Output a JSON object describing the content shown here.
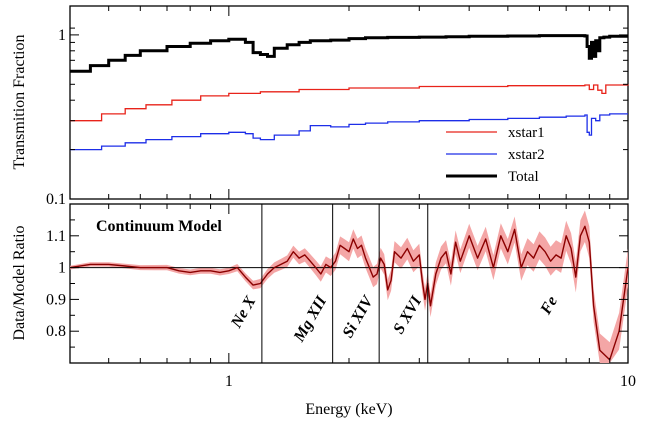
{
  "chart_data": [
    {
      "panel": "top",
      "type": "line",
      "xscale": "log",
      "yscale": "log",
      "xlim": [
        0.4,
        10
      ],
      "ylim": [
        0.1,
        1.5
      ],
      "ylabel": "Transmition Fraction",
      "yticks": [
        {
          "value": 0.1,
          "label": "0.1"
        },
        {
          "value": 1,
          "label": "1"
        }
      ],
      "legend": {
        "placement": "bottom-right"
      },
      "series": [
        {
          "name": "xstar1",
          "color": "#e8231a",
          "x": [
            0.4,
            0.48,
            0.55,
            0.62,
            0.72,
            0.85,
            1.0,
            1.2,
            1.5,
            2.0,
            3.0,
            5.0,
            7.8,
            8.0,
            8.2,
            8.4,
            8.6,
            8.8,
            10
          ],
          "y": [
            0.3,
            0.33,
            0.355,
            0.375,
            0.4,
            0.425,
            0.44,
            0.45,
            0.465,
            0.475,
            0.485,
            0.49,
            0.495,
            0.465,
            0.495,
            0.46,
            0.44,
            0.495,
            0.5
          ]
        },
        {
          "name": "xstar2",
          "color": "#1d2ee8",
          "x": [
            0.4,
            0.48,
            0.55,
            0.62,
            0.72,
            0.85,
            1.0,
            1.1,
            1.15,
            1.2,
            1.3,
            1.5,
            1.6,
            1.8,
            2.0,
            2.2,
            2.5,
            3.0,
            4.0,
            5.0,
            6.0,
            7.0,
            7.8,
            7.9,
            8.0,
            8.1,
            8.3,
            8.5,
            9.0,
            10
          ],
          "y": [
            0.2,
            0.21,
            0.22,
            0.23,
            0.24,
            0.25,
            0.255,
            0.25,
            0.235,
            0.23,
            0.245,
            0.26,
            0.28,
            0.275,
            0.285,
            0.29,
            0.295,
            0.3,
            0.305,
            0.31,
            0.315,
            0.32,
            0.325,
            0.255,
            0.245,
            0.31,
            0.3,
            0.325,
            0.33,
            0.33
          ]
        },
        {
          "name": "Total",
          "color": "#000000",
          "x": [
            0.4,
            0.45,
            0.5,
            0.55,
            0.6,
            0.7,
            0.8,
            0.9,
            1.0,
            1.1,
            1.15,
            1.2,
            1.25,
            1.3,
            1.4,
            1.5,
            1.6,
            1.8,
            2.0,
            2.2,
            2.5,
            3.0,
            3.5,
            4.0,
            5.0,
            6.0,
            7.0,
            7.8,
            7.9,
            8.0,
            8.1,
            8.2,
            8.3,
            8.4,
            8.5,
            8.7,
            9.0,
            10
          ],
          "y": [
            0.6,
            0.65,
            0.7,
            0.75,
            0.8,
            0.85,
            0.89,
            0.92,
            0.94,
            0.9,
            0.78,
            0.76,
            0.74,
            0.83,
            0.87,
            0.9,
            0.92,
            0.93,
            0.95,
            0.96,
            0.965,
            0.97,
            0.975,
            0.98,
            0.985,
            0.99,
            0.99,
            0.985,
            0.85,
            0.72,
            0.9,
            0.74,
            0.92,
            0.8,
            0.96,
            0.97,
            0.98,
            0.98
          ]
        }
      ]
    },
    {
      "panel": "bottom",
      "type": "line",
      "title": "Continuum Model",
      "xscale": "log",
      "xlim": [
        0.4,
        10
      ],
      "ylim": [
        0.7,
        1.2
      ],
      "xlabel": "Energy (keV)",
      "ylabel": "Data/Model Ratio",
      "xticks": [
        {
          "value": 1,
          "label": "1"
        },
        {
          "value": 10,
          "label": "10"
        }
      ],
      "yticks": [
        {
          "value": 0.8,
          "label": "0.8"
        },
        {
          "value": 0.9,
          "label": "0.9"
        },
        {
          "value": 1.0,
          "label": "1"
        },
        {
          "value": 1.1,
          "label": "1.1"
        }
      ],
      "reference_line": 1.0,
      "band_halfwidth": [
        [
          0.4,
          0.006
        ],
        [
          1.0,
          0.01
        ],
        [
          1.5,
          0.02
        ],
        [
          2.0,
          0.03
        ],
        [
          3.0,
          0.035
        ],
        [
          5.0,
          0.04
        ],
        [
          8.0,
          0.05
        ],
        [
          10,
          0.06
        ]
      ],
      "series": [
        {
          "name": "",
          "color": "#8b0000",
          "band_color": "#f4a6a6",
          "x": [
            0.4,
            0.45,
            0.5,
            0.55,
            0.6,
            0.65,
            0.7,
            0.75,
            0.8,
            0.85,
            0.9,
            0.95,
            1.0,
            1.05,
            1.1,
            1.15,
            1.2,
            1.25,
            1.3,
            1.35,
            1.4,
            1.45,
            1.5,
            1.55,
            1.6,
            1.65,
            1.7,
            1.75,
            1.8,
            1.85,
            1.9,
            1.95,
            2.0,
            2.05,
            2.1,
            2.15,
            2.2,
            2.25,
            2.3,
            2.35,
            2.4,
            2.45,
            2.5,
            2.55,
            2.6,
            2.7,
            2.8,
            2.9,
            3.0,
            3.05,
            3.1,
            3.15,
            3.2,
            3.3,
            3.4,
            3.5,
            3.6,
            3.7,
            3.8,
            3.9,
            4.0,
            4.2,
            4.4,
            4.6,
            4.8,
            5.0,
            5.2,
            5.4,
            5.6,
            5.8,
            6.0,
            6.2,
            6.4,
            6.6,
            6.8,
            7.0,
            7.2,
            7.4,
            7.6,
            7.8,
            8.0,
            8.2,
            8.5,
            9.0,
            9.5,
            10
          ],
          "y": [
            1.0,
            1.01,
            1.01,
            1.005,
            1.0,
            1.0,
            1.0,
            0.99,
            0.985,
            0.99,
            0.99,
            0.985,
            0.99,
            1.0,
            0.97,
            0.945,
            0.95,
            0.98,
            1.0,
            1.01,
            1.02,
            1.05,
            1.03,
            1.04,
            1.02,
            1.0,
            0.98,
            1.01,
            1.0,
            1.02,
            1.07,
            1.06,
            1.05,
            1.09,
            1.06,
            1.07,
            1.03,
            1.0,
            0.97,
            0.98,
            1.03,
            1.01,
            0.93,
            0.96,
            1.05,
            1.03,
            1.06,
            1.02,
            1.04,
            0.96,
            0.9,
            0.95,
            0.88,
            0.98,
            1.03,
            1.05,
            0.98,
            1.08,
            1.02,
            1.06,
            1.1,
            1.03,
            1.09,
            1.0,
            1.1,
            1.05,
            1.12,
            1.0,
            1.05,
            1.03,
            1.07,
            1.05,
            1.02,
            1.04,
            1.03,
            1.1,
            1.06,
            0.97,
            1.1,
            1.13,
            1.08,
            0.88,
            0.74,
            0.71,
            0.8,
            1.0
          ]
        }
      ],
      "annotations": [
        {
          "text": "Ne X",
          "x": 1.21
        },
        {
          "text": "Mg XII",
          "x": 1.82
        },
        {
          "text": "Si XIV",
          "x": 2.38
        },
        {
          "text": "S XVI",
          "x": 3.15
        },
        {
          "text": "Fe",
          "x": 6.9,
          "line": false
        }
      ]
    }
  ]
}
